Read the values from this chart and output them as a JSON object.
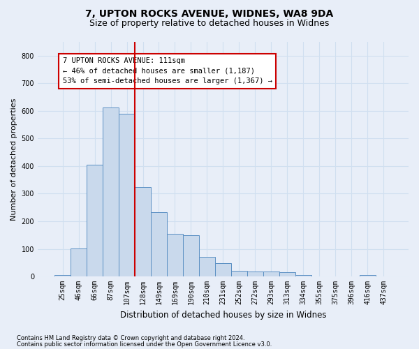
{
  "title1": "7, UPTON ROCKS AVENUE, WIDNES, WA8 9DA",
  "title2": "Size of property relative to detached houses in Widnes",
  "xlabel": "Distribution of detached houses by size in Widnes",
  "ylabel": "Number of detached properties",
  "footnote1": "Contains HM Land Registry data © Crown copyright and database right 2024.",
  "footnote2": "Contains public sector information licensed under the Open Government Licence v3.0.",
  "bin_labels": [
    "25sqm",
    "46sqm",
    "66sqm",
    "87sqm",
    "107sqm",
    "128sqm",
    "149sqm",
    "169sqm",
    "190sqm",
    "210sqm",
    "231sqm",
    "252sqm",
    "272sqm",
    "293sqm",
    "313sqm",
    "334sqm",
    "355sqm",
    "375sqm",
    "396sqm",
    "416sqm",
    "437sqm"
  ],
  "bar_values": [
    5,
    102,
    405,
    611,
    590,
    325,
    233,
    155,
    150,
    71,
    47,
    21,
    18,
    18,
    15,
    6,
    0,
    0,
    0,
    5,
    0
  ],
  "bar_color": "#c9d9ec",
  "bar_edge_color": "#5a8fc3",
  "grid_color": "#d0dff0",
  "ref_line_color": "#cc0000",
  "ref_line_x": 4.5,
  "annotation_text": "7 UPTON ROCKS AVENUE: 111sqm\n← 46% of detached houses are smaller (1,187)\n53% of semi-detached houses are larger (1,367) →",
  "annotation_box_color": "#ffffff",
  "annotation_box_edge": "#cc0000",
  "ylim": [
    0,
    850
  ],
  "yticks": [
    0,
    100,
    200,
    300,
    400,
    500,
    600,
    700,
    800
  ],
  "background_color": "#e8eef8",
  "title1_fontsize": 10,
  "title2_fontsize": 9,
  "tick_fontsize": 7,
  "ylabel_fontsize": 8,
  "xlabel_fontsize": 8.5,
  "annot_fontsize": 7.5,
  "footnote_fontsize": 6
}
